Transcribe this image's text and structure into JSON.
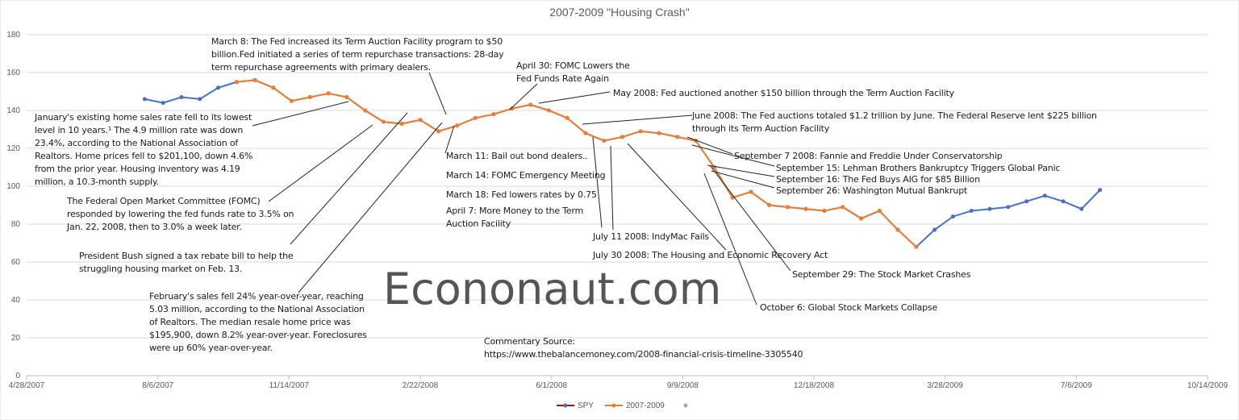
{
  "chart_data": {
    "type": "line",
    "title": "2007-2009 \"Housing Crash\"",
    "x": [
      "2007-07-27",
      "2007-08-10",
      "2007-08-24",
      "2007-09-07",
      "2007-09-21",
      "2007-10-05",
      "2007-10-19",
      "2007-11-02",
      "2007-11-16",
      "2007-11-30",
      "2007-12-14",
      "2007-12-28",
      "2008-01-11",
      "2008-01-25",
      "2008-02-08",
      "2008-02-22",
      "2008-03-07",
      "2008-03-21",
      "2008-04-04",
      "2008-04-18",
      "2008-05-02",
      "2008-05-16",
      "2008-05-30",
      "2008-06-13",
      "2008-06-27",
      "2008-07-11",
      "2008-07-25",
      "2008-08-08",
      "2008-08-22",
      "2008-09-05",
      "2008-09-19",
      "2008-10-03",
      "2008-10-17",
      "2008-10-31",
      "2008-11-14",
      "2008-11-28",
      "2008-12-12",
      "2008-12-26",
      "2009-01-09",
      "2009-01-23",
      "2009-02-06",
      "2009-02-20",
      "2009-03-06",
      "2009-03-20",
      "2009-04-03",
      "2009-04-17",
      "2009-05-01",
      "2009-05-15",
      "2009-05-29",
      "2009-06-12",
      "2009-06-26",
      "2009-07-10",
      "2009-07-24"
    ],
    "series": [
      {
        "name": "SPY",
        "color": "#4472c4",
        "line_color": "#c00000",
        "values": [
          146,
          144,
          147,
          146,
          152,
          155,
          156,
          152,
          145,
          147,
          149,
          147,
          140,
          134,
          133,
          135,
          129,
          132,
          136,
          138,
          141,
          143,
          140,
          136,
          128,
          124,
          126,
          129,
          128,
          126,
          124,
          110,
          94,
          97,
          90,
          89,
          88,
          87,
          89,
          83,
          87,
          77,
          68,
          77,
          84,
          87,
          88,
          89,
          92,
          95,
          92,
          88,
          98
        ]
      },
      {
        "name": "2007-2009",
        "color": "#ed7d31",
        "values": [
          null,
          null,
          null,
          null,
          null,
          155,
          156,
          152,
          145,
          147,
          149,
          147,
          140,
          134,
          133,
          135,
          129,
          132,
          136,
          138,
          141,
          143,
          140,
          136,
          128,
          124,
          126,
          129,
          128,
          126,
          124,
          110,
          94,
          97,
          90,
          89,
          88,
          87,
          89,
          83,
          87,
          77,
          68,
          null,
          null,
          null,
          null,
          null,
          null,
          null,
          null,
          null,
          null
        ]
      }
    ],
    "xlim": [
      "2007-04-28",
      "2009-10-14"
    ],
    "xticks": [
      {
        "value": "2007-04-28",
        "label": "4/28/2007"
      },
      {
        "value": "2007-08-06",
        "label": "8/6/2007"
      },
      {
        "value": "2007-11-14",
        "label": "11/14/2007"
      },
      {
        "value": "2008-02-22",
        "label": "2/22/2008"
      },
      {
        "value": "2008-06-01",
        "label": "6/1/2008"
      },
      {
        "value": "2008-09-09",
        "label": "9/9/2008"
      },
      {
        "value": "2008-12-18",
        "label": "12/18/2008"
      },
      {
        "value": "2009-03-28",
        "label": "3/28/2009"
      },
      {
        "value": "2009-07-06",
        "label": "7/6/2009"
      },
      {
        "value": "2009-10-14",
        "label": "10/14/2009"
      }
    ],
    "ylim": [
      0,
      180
    ],
    "yticks": [
      0,
      20,
      40,
      60,
      80,
      100,
      120,
      140,
      160,
      180
    ],
    "grid": true,
    "legend": "bottom",
    "watermark": "Econonaut.com",
    "source_label": "Commentary Source:",
    "source_url": "https://www.thebalancemoney.com/2008-financial-crisis-timeline-3305540",
    "annotations": [
      "March 8: The Fed increased its Term Auction Facility program to $50 billion.Fed initiated a series of term repurchase transactions: 28-day term repurchase agreements with primary dealers.",
      "January's existing home sales rate fell to its lowest level in 10 years.¹ The 4.9 million rate was down 23.4%, according to the National Association of Realtors. Home prices fell to $201,100, down 4.6% from the prior year. Housing inventory was 4.19 million, a 10.3-month supply.",
      "The Federal Open Market Committee (FOMC) responded by lowering the fed funds rate to 3.5% on Jan. 22, 2008, then to 3.0% a week later.",
      "President Bush signed a tax rebate bill to help the struggling housing market on Feb. 13.",
      "February's sales fell 24% year-over-year, reaching 5.03 million, according to the National Association of Realtors. The median resale home price was $195,900, down 8.2% year-over-year. Foreclosures were up 60% year-over-year.",
      "April 30: FOMC Lowers the Fed Funds Rate Again",
      "May 2008: Fed auctioned another $150 billion through the Term Auction Facility",
      "June 2008: The Fed auctions totaled $1.2 trillion by June. The Federal Reserve lent $225 billion through its Term Auction Facility",
      "March 11: Bail out bond dealers..",
      "March 14: FOMC Emergency Meeting",
      "March 18: Fed lowers rates by 0.75",
      "April 7: More Money to the Term Auction Facility",
      "July 11 2008: IndyMac Fails",
      "July 30 2008: The Housing and Economic Recovery Act",
      "September 7 2008: Fannie and Freddie Under Conservatorship",
      "September 15: Lehman Brothers Bankruptcy Triggers Global Panic",
      "September 16: The Fed Buys AIG for $85 Billion",
      "September 26: Washington Mutual Bankrupt",
      "September 29: The Stock Market Crashes",
      "October 6: Global Stock Markets Collapse"
    ]
  }
}
